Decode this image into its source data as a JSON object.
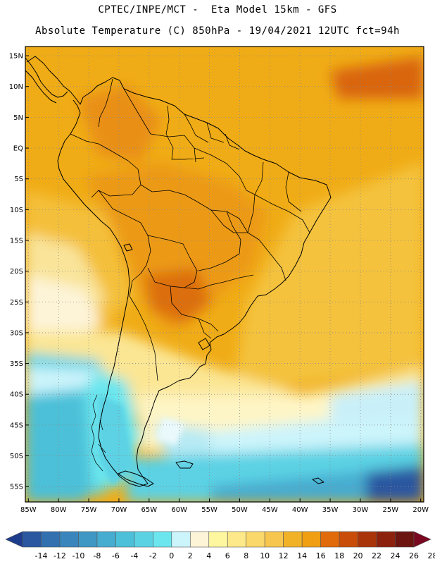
{
  "header": {
    "line1": "CPTEC/INPE/MCT -  Eta Model 15km - GFS",
    "line2": "Absolute Temperature (C) 850hPa - 19/04/2021 12UTC fct=94h"
  },
  "latitude_labels": [
    "15N",
    "10N",
    "5N",
    "EQ",
    "5S",
    "10S",
    "15S",
    "20S",
    "25S",
    "30S",
    "35S",
    "40S",
    "45S",
    "50S",
    "55S"
  ],
  "longitude_labels": [
    "85W",
    "80W",
    "75W",
    "70W",
    "65W",
    "60W",
    "55W",
    "50W",
    "45W",
    "40W",
    "35W",
    "30W",
    "25W",
    "20W"
  ],
  "colorbar": {
    "labels": [
      "-14",
      "-12",
      "-10",
      "-8",
      "-6",
      "-4",
      "-2",
      "0",
      "2",
      "4",
      "6",
      "8",
      "10",
      "12",
      "14",
      "16",
      "18",
      "20",
      "22",
      "24",
      "26",
      "28"
    ],
    "colors": [
      "#1d3c8c",
      "#2a57a0",
      "#3370b0",
      "#3a86bc",
      "#3f98c4",
      "#46acd0",
      "#4cc0d8",
      "#5bd2e4",
      "#6be6ee",
      "#ccf4fb",
      "#fdf4d8",
      "#fef7a0",
      "#fde98a",
      "#fbd86a",
      "#f6c64e",
      "#f1b227",
      "#f09e12",
      "#e16a0a",
      "#c94d08",
      "#aa340a",
      "#8c220e",
      "#6b1410",
      "#7a0820"
    ]
  },
  "map_data": {
    "extent": {
      "lon_min": -85.5,
      "lon_max": -19.5,
      "lat_min": -57.5,
      "lat_max": 16.5
    },
    "field": "Absolute Temperature at 850hPa (C)"
  }
}
